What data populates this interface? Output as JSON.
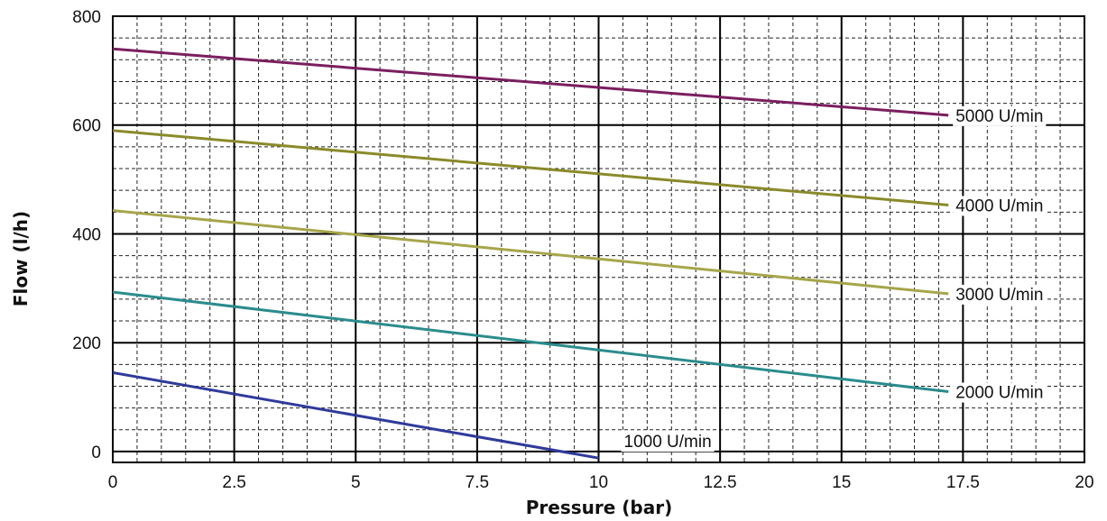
{
  "chart_data": {
    "type": "line",
    "xlabel": "Pressure (bar)",
    "ylabel": "Flow (l/h)",
    "xlim": [
      0,
      20
    ],
    "ylim": [
      -20,
      800
    ],
    "x_ticks": [
      "0",
      "2.5",
      "5",
      "7.5",
      "10",
      "12.5",
      "15",
      "17.5",
      "20"
    ],
    "y_ticks": [
      "0",
      "200",
      "400",
      "600",
      "800"
    ],
    "grid": true,
    "series": [
      {
        "name": "5000 U/min",
        "color": "#7a1f5f",
        "x": [
          0,
          17.2
        ],
        "y": [
          740,
          618
        ]
      },
      {
        "name": "4000 U/min",
        "color": "#8a8a2a",
        "x": [
          0,
          17.2
        ],
        "y": [
          590,
          453
        ]
      },
      {
        "name": "3000 U/min",
        "color": "#a6a64a",
        "x": [
          0,
          17.2
        ],
        "y": [
          443,
          290
        ]
      },
      {
        "name": "2000 U/min",
        "color": "#2a8c8c",
        "x": [
          0,
          17.2
        ],
        "y": [
          293,
          110
        ]
      },
      {
        "name": "1000 U/min",
        "color": "#2e3a9a",
        "x": [
          0,
          10
        ],
        "y": [
          145,
          -12
        ]
      }
    ]
  }
}
